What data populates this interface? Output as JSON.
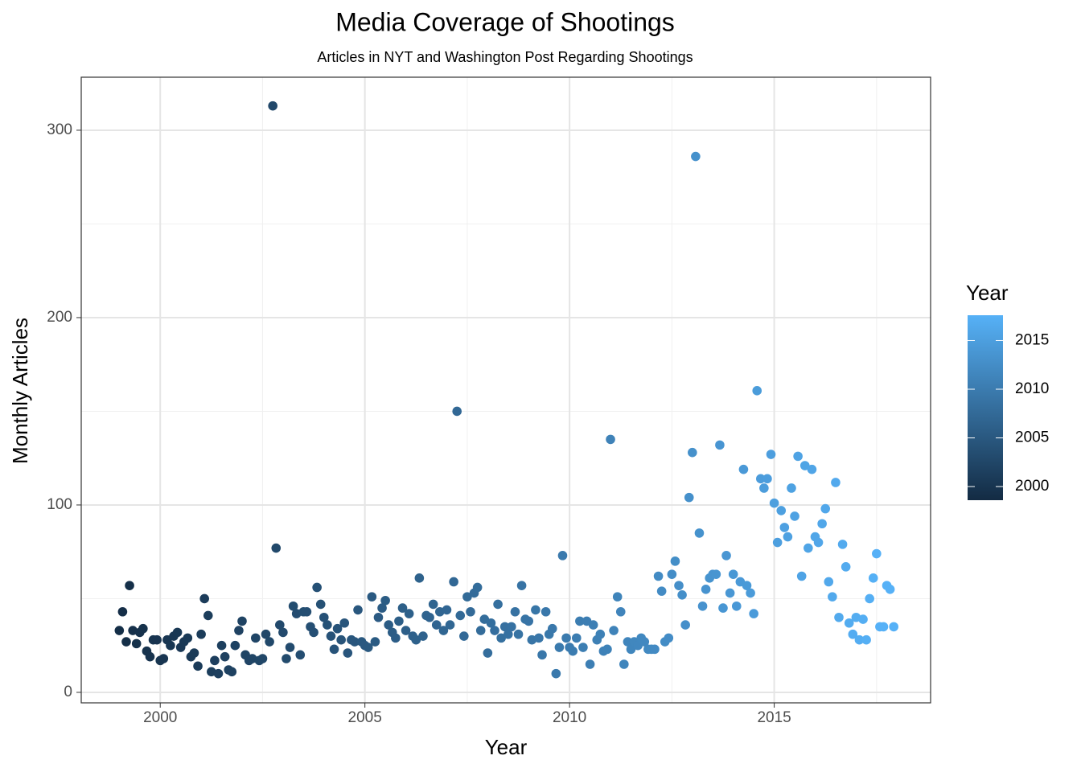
{
  "chart_data": {
    "type": "scatter",
    "title": "Media Coverage of Shootings",
    "subtitle": "Articles in NYT and Washington Post Regarding Shootings",
    "x_label": "Year",
    "y_label": "Monthly Articles",
    "legend_title": "Year",
    "x": [
      1999,
      1999.08,
      1999.17,
      1999.25,
      1999.33,
      1999.42,
      1999.5,
      1999.58,
      1999.67,
      1999.75,
      1999.83,
      1999.92,
      2000,
      2000.08,
      2000.17,
      2000.25,
      2000.33,
      2000.42,
      2000.5,
      2000.58,
      2000.67,
      2000.75,
      2000.83,
      2000.92,
      2001,
      2001.08,
      2001.17,
      2001.25,
      2001.33,
      2001.42,
      2001.5,
      2001.58,
      2001.67,
      2001.75,
      2001.83,
      2001.92,
      2002,
      2002.08,
      2002.17,
      2002.25,
      2002.33,
      2002.42,
      2002.5,
      2002.58,
      2002.67,
      2002.75,
      2002.83,
      2002.92,
      2003,
      2003.08,
      2003.17,
      2003.25,
      2003.33,
      2003.42,
      2003.5,
      2003.58,
      2003.67,
      2003.75,
      2003.83,
      2003.92,
      2004,
      2004.08,
      2004.17,
      2004.25,
      2004.33,
      2004.42,
      2004.5,
      2004.58,
      2004.67,
      2004.75,
      2004.83,
      2004.92,
      2005,
      2005.08,
      2005.17,
      2005.25,
      2005.33,
      2005.42,
      2005.5,
      2005.58,
      2005.67,
      2005.75,
      2005.83,
      2005.92,
      2006,
      2006.08,
      2006.17,
      2006.25,
      2006.33,
      2006.42,
      2006.5,
      2006.58,
      2006.67,
      2006.75,
      2006.83,
      2006.92,
      2007,
      2007.08,
      2007.17,
      2007.25,
      2007.33,
      2007.42,
      2007.5,
      2007.58,
      2007.67,
      2007.75,
      2007.83,
      2007.92,
      2008,
      2008.08,
      2008.17,
      2008.25,
      2008.33,
      2008.42,
      2008.5,
      2008.58,
      2008.67,
      2008.75,
      2008.83,
      2008.92,
      2009,
      2009.08,
      2009.17,
      2009.25,
      2009.33,
      2009.42,
      2009.5,
      2009.58,
      2009.67,
      2009.75,
      2009.83,
      2009.92,
      2010,
      2010.08,
      2010.17,
      2010.25,
      2010.33,
      2010.42,
      2010.5,
      2010.58,
      2010.67,
      2010.75,
      2010.83,
      2010.92,
      2011,
      2011.08,
      2011.17,
      2011.25,
      2011.33,
      2011.42,
      2011.5,
      2011.58,
      2011.67,
      2011.75,
      2011.83,
      2011.92,
      2012,
      2012.08,
      2012.17,
      2012.25,
      2012.33,
      2012.42,
      2012.5,
      2012.58,
      2012.67,
      2012.75,
      2012.83,
      2012.92,
      2013,
      2013.08,
      2013.17,
      2013.25,
      2013.33,
      2013.42,
      2013.5,
      2013.58,
      2013.67,
      2013.75,
      2013.83,
      2013.92,
      2014,
      2014.08,
      2014.17,
      2014.25,
      2014.33,
      2014.42,
      2014.5,
      2014.58,
      2014.67,
      2014.75,
      2014.83,
      2014.92,
      2015,
      2015.08,
      2015.17,
      2015.25,
      2015.33,
      2015.42,
      2015.5,
      2015.58,
      2015.67,
      2015.75,
      2015.83,
      2015.92,
      2016,
      2016.08,
      2016.17,
      2016.25,
      2016.33,
      2016.42,
      2016.5,
      2016.58,
      2016.67,
      2016.75,
      2016.83,
      2016.92,
      2017,
      2017.08,
      2017.17,
      2017.25,
      2017.33,
      2017.42,
      2017.5,
      2017.58,
      2017.67,
      2017.75,
      2017.83,
      2017.92
    ],
    "values": [
      33,
      43,
      27,
      57,
      33,
      26,
      32,
      34,
      22,
      19,
      28,
      28,
      17,
      18,
      28,
      25,
      30,
      32,
      24,
      27,
      29,
      19,
      21,
      14,
      31,
      50,
      41,
      11,
      17,
      10,
      25,
      19,
      12,
      11,
      25,
      33,
      38,
      20,
      17,
      18,
      29,
      17,
      18,
      31,
      27,
      313,
      77,
      36,
      32,
      18,
      24,
      46,
      42,
      20,
      43,
      43,
      35,
      32,
      56,
      47,
      40,
      36,
      30,
      23,
      34,
      28,
      37,
      21,
      28,
      27,
      44,
      27,
      25,
      24,
      51,
      27,
      40,
      45,
      49,
      36,
      32,
      29,
      38,
      45,
      33,
      42,
      30,
      28,
      61,
      30,
      41,
      40,
      47,
      36,
      43,
      33,
      44,
      36,
      59,
      150,
      41,
      30,
      51,
      43,
      53,
      56,
      33,
      39,
      21,
      37,
      33,
      47,
      29,
      35,
      31,
      35,
      43,
      31,
      57,
      39,
      38,
      28,
      44,
      29,
      20,
      43,
      31,
      34,
      10,
      24,
      73,
      29,
      24,
      22,
      29,
      38,
      24,
      38,
      15,
      36,
      28,
      31,
      22,
      23,
      135,
      33,
      51,
      43,
      15,
      27,
      23,
      27,
      25,
      29,
      27,
      23,
      23,
      23,
      62,
      54,
      27,
      29,
      63,
      70,
      57,
      52,
      36,
      104,
      128,
      286,
      85,
      46,
      55,
      61,
      63,
      63,
      132,
      45,
      73,
      53,
      63,
      46,
      59,
      119,
      57,
      53,
      42,
      161,
      114,
      109,
      114,
      127,
      101,
      80,
      97,
      88,
      83,
      109,
      94,
      126,
      62,
      121,
      77,
      119,
      83,
      80,
      90,
      98,
      59,
      51,
      112,
      40,
      79,
      67,
      37,
      31,
      40,
      28,
      39,
      28,
      50,
      61,
      74,
      35,
      35,
      57,
      55,
      35
    ],
    "color_low": "#132B43",
    "color_high": "#56B1F7",
    "color_limits": [
      1998.6,
      2017.6
    ],
    "color_ticks": [
      2000,
      2005,
      2010,
      2015
    ],
    "xlim": [
      1998.07,
      2018.82
    ],
    "ylim": [
      -5.6,
      328.3
    ],
    "xticks": [
      2000,
      2005,
      2010,
      2015
    ],
    "yticks": [
      0,
      100,
      200,
      300
    ],
    "xminor": [
      2002.5,
      2007.5,
      2012.5,
      2017.5
    ],
    "yminor": [
      50,
      150,
      250
    ],
    "grid": true
  }
}
